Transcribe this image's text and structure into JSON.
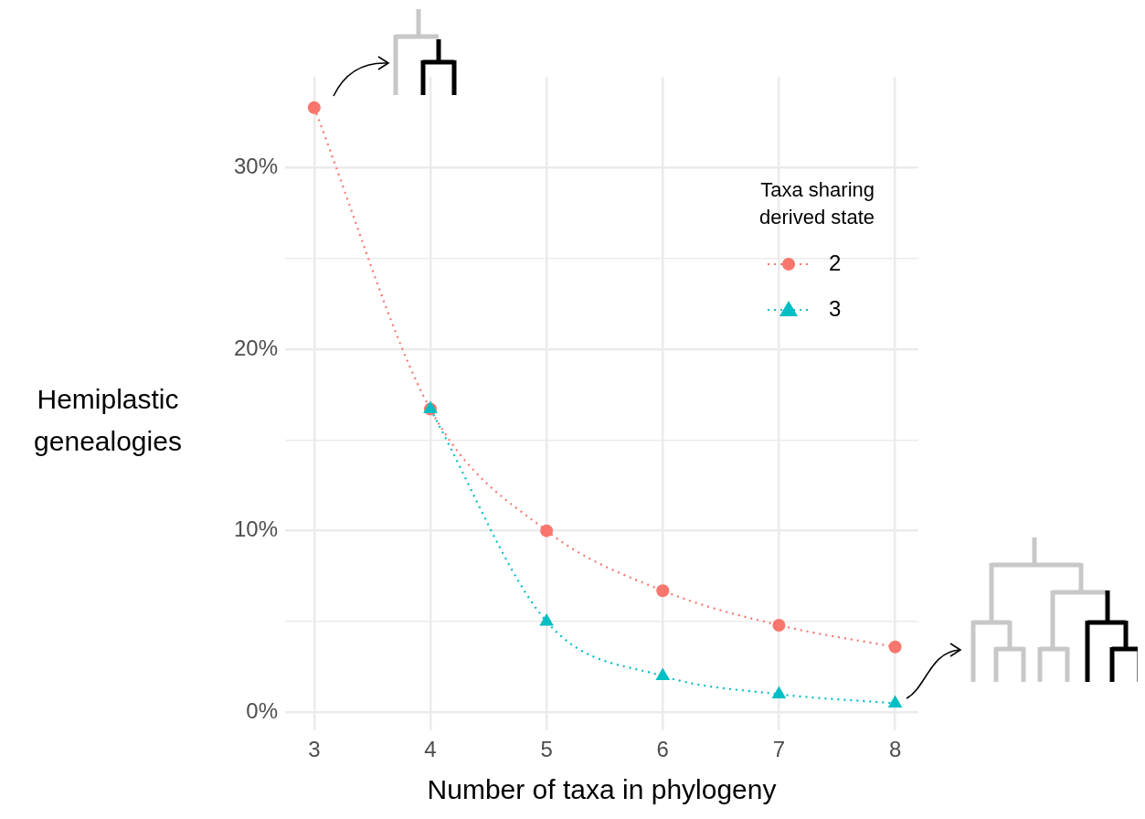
{
  "chart_data": {
    "type": "line",
    "xlabel": "Number of taxa in phylogeny",
    "ylabel": "Hemiplastic genealogies",
    "legend_title": "Taxa sharing derived state",
    "x": [
      3,
      4,
      5,
      6,
      7,
      8
    ],
    "series": [
      {
        "name": "2",
        "color": "#f8766d",
        "marker": "circle",
        "values": [
          33.3,
          16.7,
          10,
          6.7,
          4.8,
          3.6
        ]
      },
      {
        "name": "3",
        "color": "#00bfc4",
        "marker": "triangle",
        "values": [
          null,
          16.7,
          5,
          2,
          1,
          0.5
        ]
      }
    ],
    "xlim": [
      2.75,
      8.2
    ],
    "xticks": [
      3,
      4,
      5,
      6,
      7,
      8
    ],
    "ylim": [
      -1,
      35
    ],
    "yticks": [
      {
        "value": 0,
        "label": "0%"
      },
      {
        "value": 5,
        "label": null
      },
      {
        "value": 10,
        "label": "10%"
      },
      {
        "value": 15,
        "label": null
      },
      {
        "value": 20,
        "label": "20%"
      },
      {
        "value": 25,
        "label": null
      },
      {
        "value": 30,
        "label": "30%"
      }
    ],
    "grid": true,
    "legend": "top right",
    "line_style": "dotted"
  }
}
